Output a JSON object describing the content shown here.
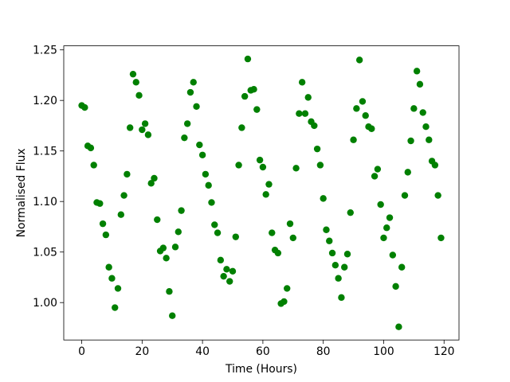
{
  "chart_data": {
    "type": "scatter",
    "xlabel": "Time (Hours)",
    "ylabel": "Normalised Flux",
    "color": "#008000",
    "x": [
      0,
      1,
      2,
      3,
      4,
      5,
      6,
      7,
      8,
      9,
      10,
      11,
      12,
      13,
      14,
      15,
      16,
      17,
      18,
      19,
      20,
      21,
      22,
      23,
      24,
      25,
      26,
      27,
      28,
      29,
      30,
      31,
      32,
      33,
      34,
      35,
      36,
      37,
      38,
      39,
      40,
      41,
      42,
      43,
      44,
      45,
      46,
      47,
      48,
      49,
      50,
      51,
      52,
      53,
      54,
      55,
      56,
      57,
      58,
      59,
      60,
      61,
      62,
      63,
      64,
      65,
      66,
      67,
      68,
      69,
      70,
      71,
      72,
      73,
      74,
      75,
      76,
      77,
      78,
      79,
      80,
      81,
      82,
      83,
      84,
      85,
      86,
      87,
      88,
      89,
      90,
      91,
      92,
      93,
      94,
      95,
      96,
      97,
      98,
      99,
      100,
      101,
      102,
      103,
      104,
      105,
      106,
      107,
      108,
      109,
      110,
      111,
      112,
      113,
      114,
      115,
      116,
      117,
      118,
      119
    ],
    "values": [
      1.195,
      1.193,
      1.155,
      1.153,
      1.136,
      1.099,
      1.098,
      1.078,
      1.067,
      1.035,
      1.024,
      0.995,
      1.014,
      1.087,
      1.106,
      1.127,
      1.173,
      1.226,
      1.218,
      1.205,
      1.171,
      1.177,
      1.166,
      1.118,
      1.123,
      1.082,
      1.051,
      1.054,
      1.044,
      1.011,
      0.987,
      1.055,
      1.07,
      1.091,
      1.163,
      1.177,
      1.208,
      1.218,
      1.194,
      1.156,
      1.146,
      1.127,
      1.116,
      1.099,
      1.077,
      1.069,
      1.042,
      1.026,
      1.033,
      1.021,
      1.031,
      1.065,
      1.136,
      1.173,
      1.204,
      1.241,
      1.21,
      1.211,
      1.191,
      1.141,
      1.134,
      1.107,
      1.117,
      1.069,
      1.052,
      1.049,
      0.999,
      1.001,
      1.014,
      1.078,
      1.064,
      1.133,
      1.187,
      1.218,
      1.187,
      1.203,
      1.179,
      1.175,
      1.152,
      1.136,
      1.103,
      1.072,
      1.061,
      1.049,
      1.037,
      1.024,
      1.005,
      1.035,
      1.048,
      1.089,
      1.161,
      1.192,
      1.24,
      1.199,
      1.185,
      1.174,
      1.172,
      1.125,
      1.132,
      1.097,
      1.064,
      1.074,
      1.084,
      1.047,
      1.016,
      0.976,
      1.035,
      1.106,
      1.129,
      1.16,
      1.192,
      1.229,
      1.216,
      1.188,
      1.174,
      1.161,
      1.14,
      1.136,
      1.106,
      1.064
    ],
    "xlim": [
      -5.95,
      124.95
    ],
    "ylim": [
      0.963,
      1.254
    ],
    "xticks": [
      0,
      20,
      40,
      60,
      80,
      100,
      120
    ],
    "yticks": [
      {
        "value": 1.0,
        "label": "1.00"
      },
      1.05,
      {
        "value": 1.1,
        "label": "1.10"
      },
      1.15,
      {
        "value": 1.2,
        "label": "1.20"
      },
      1.25
    ]
  }
}
